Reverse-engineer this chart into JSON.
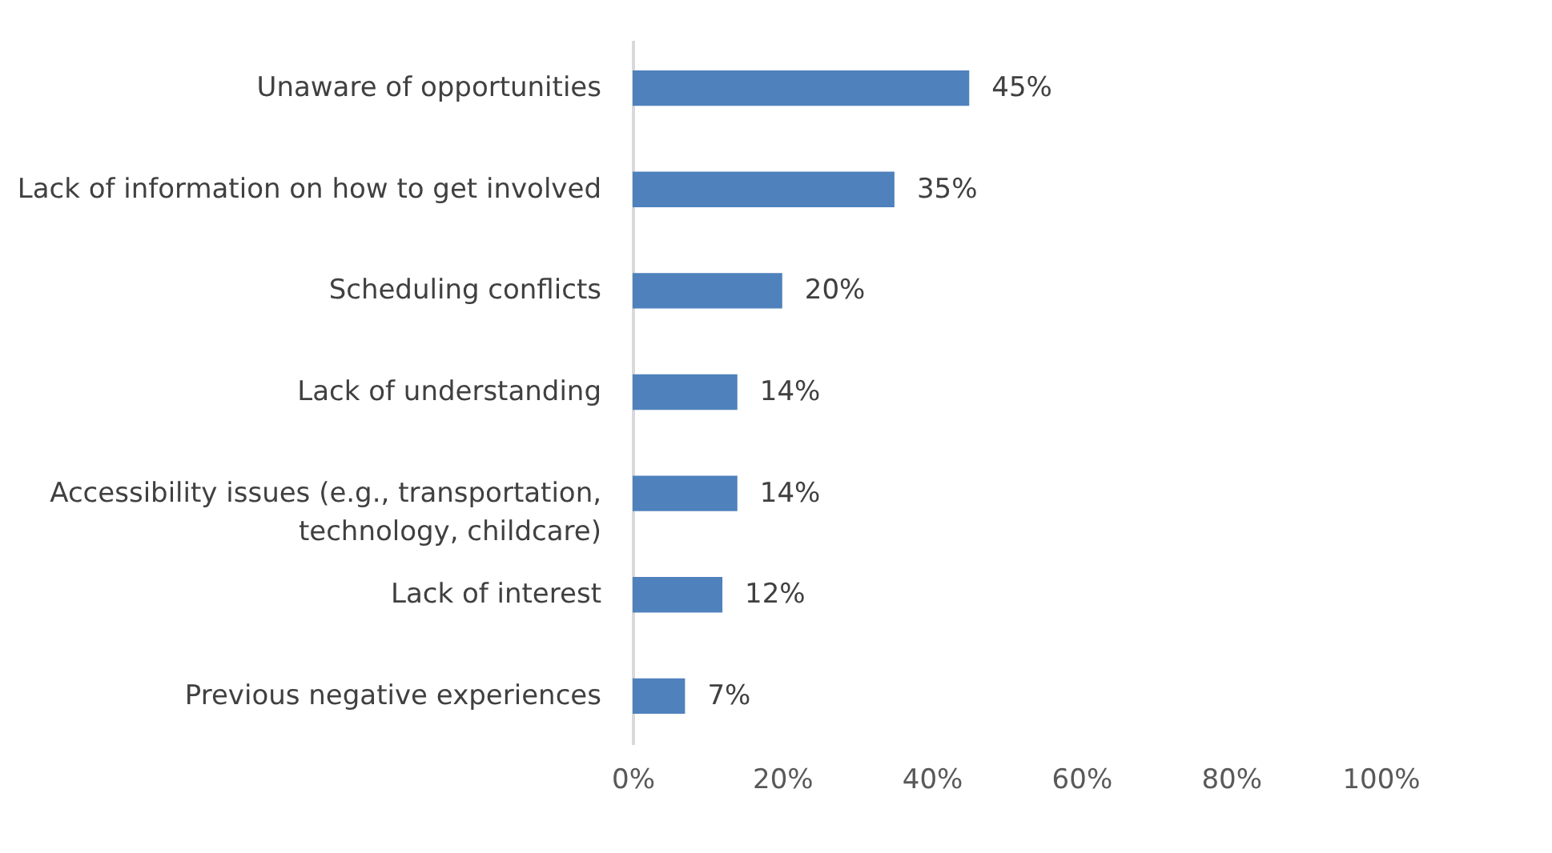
{
  "chart_data": {
    "type": "bar",
    "orientation": "horizontal",
    "categories": [
      "Unaware of opportunities",
      "Lack of information on how to get involved",
      "Scheduling conflicts",
      "Lack of understanding",
      "Accessibility issues (e.g., transportation, technology, childcare)",
      "Lack of interest",
      "Previous negative experiences"
    ],
    "values": [
      45,
      35,
      20,
      14,
      14,
      12,
      7
    ],
    "value_labels": [
      "45%",
      "35%",
      "20%",
      "14%",
      "14%",
      "12%",
      "7%"
    ],
    "color": "#4f81bd",
    "xlim": [
      0,
      100
    ],
    "xticks": [
      {
        "value": 0,
        "label": "0%"
      },
      {
        "value": 20,
        "label": "20%"
      },
      {
        "value": 40,
        "label": "40%"
      },
      {
        "value": 60,
        "label": "60%"
      },
      {
        "value": 80,
        "label": "80%"
      },
      {
        "value": 100,
        "label": "100%"
      }
    ],
    "grid": false
  }
}
